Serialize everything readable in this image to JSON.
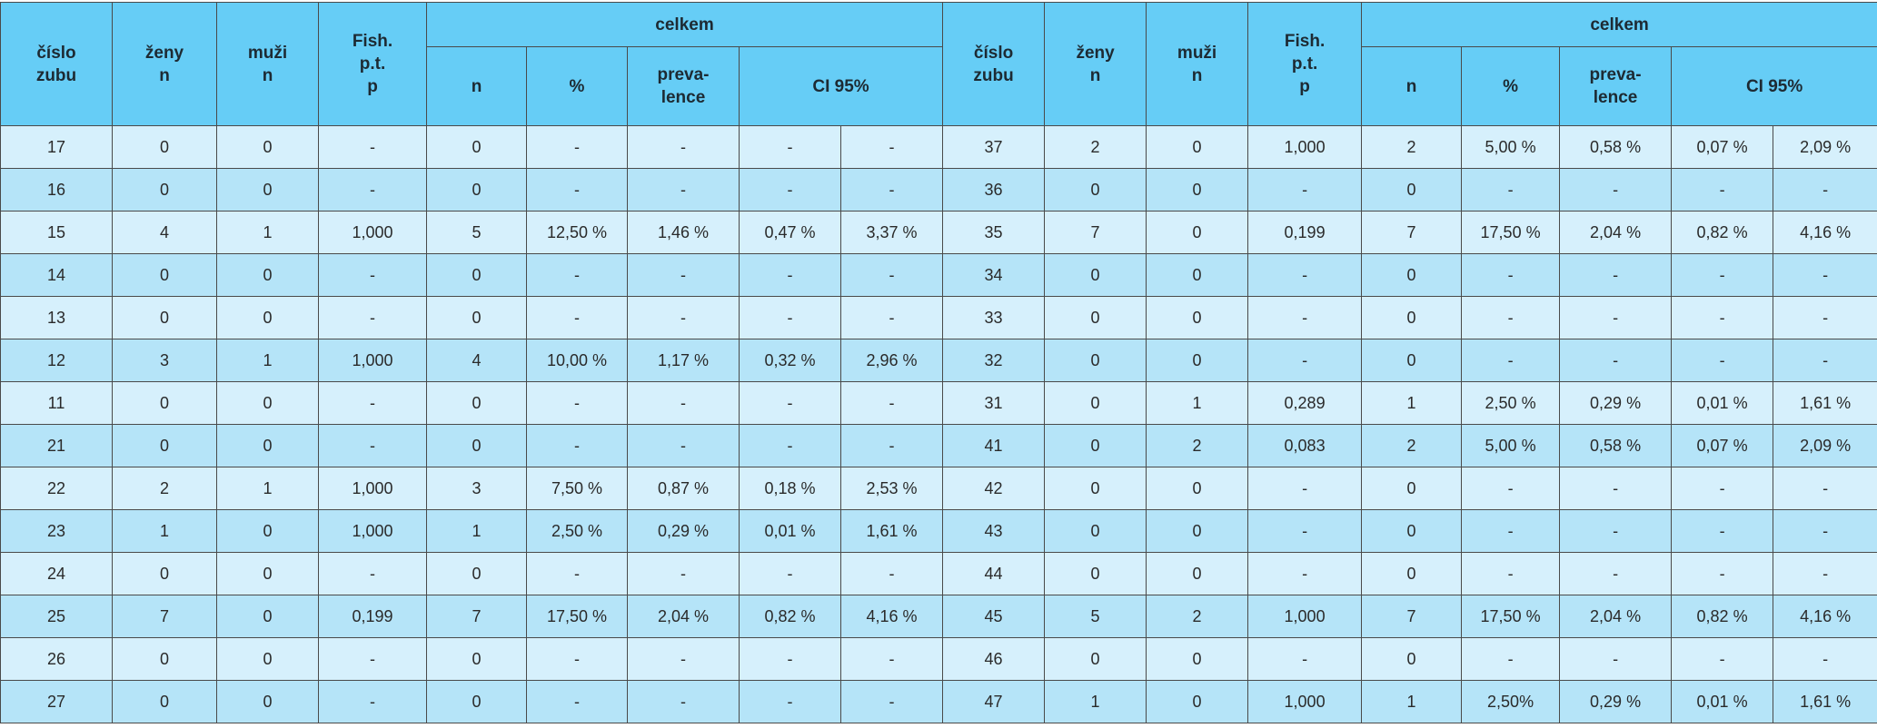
{
  "table": {
    "header": {
      "row1": [
        {
          "lines": [
            "číslo",
            "zubu"
          ]
        },
        {
          "lines": [
            "ženy",
            "n"
          ]
        },
        {
          "lines": [
            "muži",
            "n"
          ]
        },
        {
          "lines": [
            "Fish.",
            "p.t.",
            "p"
          ]
        },
        {
          "lines": [
            "celkem"
          ]
        },
        {
          "lines": [
            "číslo",
            "zubu"
          ]
        },
        {
          "lines": [
            "ženy",
            "n"
          ]
        },
        {
          "lines": [
            "muži",
            "n"
          ]
        },
        {
          "lines": [
            "Fish.",
            "p.t.",
            "p"
          ]
        },
        {
          "lines": [
            "celkem"
          ]
        }
      ],
      "row2": [
        {
          "lines": [
            "n"
          ]
        },
        {
          "lines": [
            "%"
          ]
        },
        {
          "lines": [
            "preva-",
            "lence"
          ]
        },
        {
          "lines": [
            "CI 95%"
          ]
        },
        {
          "lines": [
            "n"
          ]
        },
        {
          "lines": [
            "%"
          ]
        },
        {
          "lines": [
            "preva-",
            "lence"
          ]
        },
        {
          "lines": [
            "CI 95%"
          ]
        }
      ]
    },
    "rows": [
      [
        "17",
        "0",
        "0",
        "-",
        "0",
        "-",
        "-",
        "-",
        "-",
        "37",
        "2",
        "0",
        "1,000",
        "2",
        "5,00 %",
        "0,58 %",
        "0,07 %",
        "2,09 %"
      ],
      [
        "16",
        "0",
        "0",
        "-",
        "0",
        "-",
        "-",
        "-",
        "-",
        "36",
        "0",
        "0",
        "-",
        "0",
        "-",
        "-",
        "-",
        "-"
      ],
      [
        "15",
        "4",
        "1",
        "1,000",
        "5",
        "12,50 %",
        "1,46 %",
        "0,47 %",
        "3,37 %",
        "35",
        "7",
        "0",
        "0,199",
        "7",
        "17,50 %",
        "2,04 %",
        "0,82 %",
        "4,16 %"
      ],
      [
        "14",
        "0",
        "0",
        "-",
        "0",
        "-",
        "-",
        "-",
        "-",
        "34",
        "0",
        "0",
        "-",
        "0",
        "-",
        "-",
        "-",
        "-"
      ],
      [
        "13",
        "0",
        "0",
        "-",
        "0",
        "-",
        "-",
        "-",
        "-",
        "33",
        "0",
        "0",
        "-",
        "0",
        "-",
        "-",
        "-",
        "-"
      ],
      [
        "12",
        "3",
        "1",
        "1,000",
        "4",
        "10,00 %",
        "1,17 %",
        "0,32 %",
        "2,96 %",
        "32",
        "0",
        "0",
        "-",
        "0",
        "-",
        "-",
        "-",
        "-"
      ],
      [
        "11",
        "0",
        "0",
        "-",
        "0",
        "-",
        "-",
        "-",
        "-",
        "31",
        "0",
        "1",
        "0,289",
        "1",
        "2,50 %",
        "0,29 %",
        "0,01 %",
        "1,61 %"
      ],
      [
        "21",
        "0",
        "0",
        "-",
        "0",
        "-",
        "-",
        "-",
        "-",
        "41",
        "0",
        "2",
        "0,083",
        "2",
        "5,00 %",
        "0,58 %",
        "0,07 %",
        "2,09 %"
      ],
      [
        "22",
        "2",
        "1",
        "1,000",
        "3",
        "7,50 %",
        "0,87 %",
        "0,18 %",
        "2,53 %",
        "42",
        "0",
        "0",
        "-",
        "0",
        "-",
        "-",
        "-",
        "-"
      ],
      [
        "23",
        "1",
        "0",
        "1,000",
        "1",
        "2,50 %",
        "0,29 %",
        "0,01 %",
        "1,61 %",
        "43",
        "0",
        "0",
        "-",
        "0",
        "-",
        "-",
        "-",
        "-"
      ],
      [
        "24",
        "0",
        "0",
        "-",
        "0",
        "-",
        "-",
        "-",
        "-",
        "44",
        "0",
        "0",
        "-",
        "0",
        "-",
        "-",
        "-",
        "-"
      ],
      [
        "25",
        "7",
        "0",
        "0,199",
        "7",
        "17,50 %",
        "2,04 %",
        "0,82 %",
        "4,16 %",
        "45",
        "5",
        "2",
        "1,000",
        "7",
        "17,50 %",
        "2,04 %",
        "0,82 %",
        "4,16 %"
      ],
      [
        "26",
        "0",
        "0",
        "-",
        "0",
        "-",
        "-",
        "-",
        "-",
        "46",
        "0",
        "0",
        "-",
        "0",
        "-",
        "-",
        "-",
        "-"
      ],
      [
        "27",
        "0",
        "0",
        "-",
        "0",
        "-",
        "-",
        "-",
        "-",
        "47",
        "1",
        "0",
        "1,000",
        "1",
        "2,50%",
        "0,29 %",
        "0,01 %",
        "1,61 %"
      ]
    ]
  }
}
